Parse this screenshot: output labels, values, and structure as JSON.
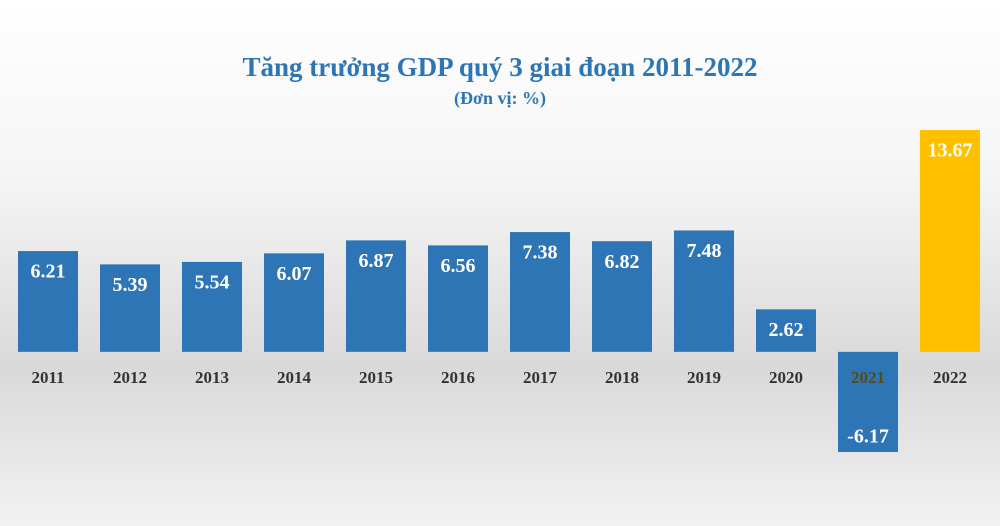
{
  "chart_data": {
    "type": "bar",
    "title": "Tăng trưởng GDP quý 3 giai đoạn 2011-2022",
    "subtitle": "(Đơn vị: %)",
    "categories": [
      "2011",
      "2012",
      "2013",
      "2014",
      "2015",
      "2016",
      "2017",
      "2018",
      "2019",
      "2020",
      "2021",
      "2022"
    ],
    "values": [
      6.21,
      5.39,
      5.54,
      6.07,
      6.87,
      6.56,
      7.38,
      6.82,
      7.48,
      2.62,
      -6.17,
      13.67
    ],
    "colors": [
      "#2e75b6",
      "#2e75b6",
      "#2e75b6",
      "#2e75b6",
      "#2e75b6",
      "#2e75b6",
      "#2e75b6",
      "#2e75b6",
      "#2e75b6",
      "#2e75b6",
      "#2e75b6",
      "#ffc000"
    ],
    "grid": false
  }
}
